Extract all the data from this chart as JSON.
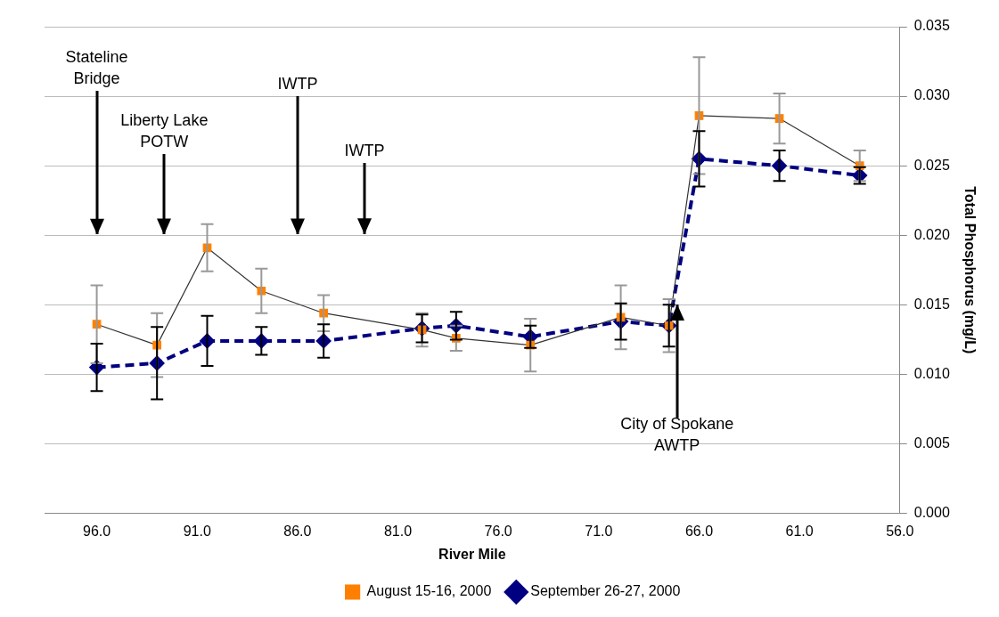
{
  "chart_data": {
    "type": "line",
    "xlabel": "River Mile",
    "ylabel": "Total Phosphorus (mg/L)",
    "xlim": [
      98.6,
      56
    ],
    "xticks": [
      {
        "value": 96,
        "label": "96.0"
      },
      {
        "value": 91,
        "label": "91.0"
      },
      {
        "value": 86,
        "label": "86.0"
      },
      {
        "value": 81,
        "label": "81.0"
      },
      {
        "value": 76,
        "label": "76.0"
      },
      {
        "value": 71,
        "label": "71.0"
      },
      {
        "value": 66,
        "label": "66.0"
      },
      {
        "value": 61,
        "label": "61.0"
      },
      {
        "value": 56,
        "label": "56.0"
      }
    ],
    "ylim": [
      0,
      0.035
    ],
    "yticks": [
      {
        "value": 0,
        "label": "0.000"
      },
      {
        "value": 0.005,
        "label": "0.005"
      },
      {
        "value": 0.01,
        "label": "0.010"
      },
      {
        "value": 0.015,
        "label": "0.015"
      },
      {
        "value": 0.02,
        "label": "0.020"
      },
      {
        "value": 0.025,
        "label": "0.025"
      },
      {
        "value": 0.03,
        "label": "0.030"
      },
      {
        "value": 0.035,
        "label": "0.035"
      }
    ],
    "grid": "y",
    "legend": "bottom",
    "series": [
      {
        "name": "August 15-16, 2000",
        "color": "#ff8000",
        "marker": "square",
        "line_style": "solid",
        "x": [
          96.0,
          93.0,
          90.5,
          87.8,
          84.7,
          79.8,
          78.1,
          74.4,
          69.9,
          67.5,
          66.0,
          62.0,
          58.0
        ],
        "values": [
          0.0136,
          0.0121,
          0.0191,
          0.016,
          0.0144,
          0.0132,
          0.0126,
          0.0121,
          0.0141,
          0.0135,
          0.0286,
          0.0284,
          0.025
        ],
        "errors": [
          0.0028,
          0.0023,
          0.0017,
          0.0016,
          0.0013,
          0.0012,
          0.0009,
          0.0019,
          0.0023,
          0.0019,
          0.0042,
          0.0018,
          0.0011
        ]
      },
      {
        "name": "September 26-27, 2000",
        "color": "#000080",
        "marker": "diamond",
        "line_style": "dashed",
        "x": [
          96.0,
          93.0,
          90.5,
          87.8,
          84.7,
          79.8,
          78.1,
          74.4,
          69.9,
          67.5,
          66.0,
          62.0,
          58.0
        ],
        "values": [
          0.0105,
          0.0108,
          0.0124,
          0.0124,
          0.0124,
          0.0133,
          0.0135,
          0.0127,
          0.0138,
          0.0135,
          0.0255,
          0.025,
          0.0243
        ],
        "errors": [
          0.0017,
          0.0026,
          0.0018,
          0.001,
          0.0012,
          0.001,
          0.001,
          0.0008,
          0.0013,
          0.0015,
          0.002,
          0.0011,
          0.0006
        ]
      }
    ],
    "annotations": [
      "Stateline\nBridge",
      "Liberty Lake\nPOTW",
      "IWTP",
      "IWTP",
      {
        "text": "City of Spokane\nAWTP",
        "x": 67.1,
        "y": 0.015
      }
    ]
  }
}
